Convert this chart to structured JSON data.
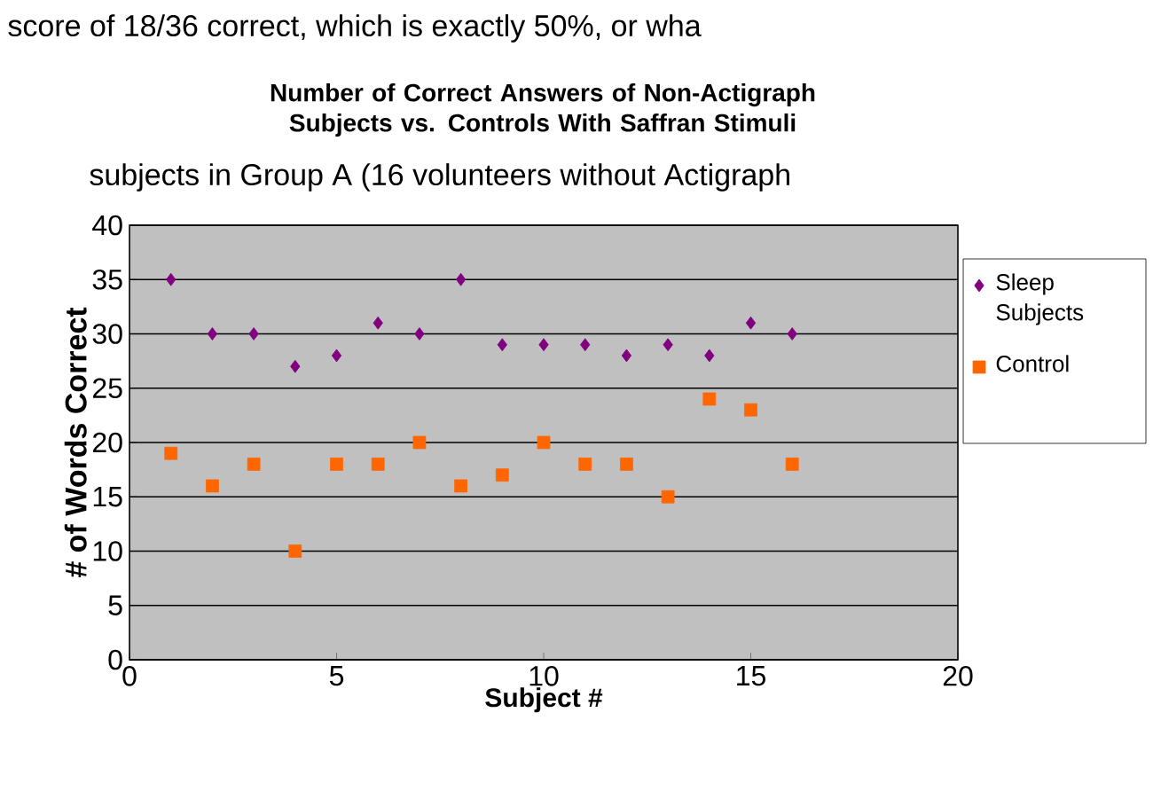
{
  "chart_data": {
    "type": "scatter",
    "title": "Number of Correct Answers of Non-Actigraph Subjects vs. Controls With Saffran Stimuli",
    "xlabel": "Subject #",
    "ylabel": "# of Words Correct",
    "x": [
      1,
      2,
      3,
      4,
      5,
      6,
      7,
      8,
      9,
      10,
      11,
      12,
      13,
      14,
      15,
      16
    ],
    "series": [
      {
        "name": "Sleep Subjects",
        "color": "#800080",
        "marker": "diamond",
        "values": [
          35,
          30,
          30,
          27,
          28,
          31,
          30,
          35,
          29,
          29,
          29,
          28,
          29,
          28,
          31,
          30
        ]
      },
      {
        "name": "Control",
        "color": "#ff6600",
        "marker": "square",
        "values": [
          19,
          16,
          18,
          10,
          18,
          18,
          20,
          16,
          17,
          20,
          18,
          18,
          15,
          24,
          23,
          18
        ]
      }
    ],
    "xlim": [
      0,
      20
    ],
    "xticks": [
      0,
      5,
      10,
      15,
      20
    ],
    "ylim": [
      0,
      40
    ],
    "yticks": [
      0,
      5,
      10,
      15,
      20,
      25,
      30,
      35,
      40
    ],
    "grid": "y",
    "legend": "right",
    "annotations": [
      "score of 18/36 correct, which is exactly 50%, or wha",
      "subjects in Group A (16 volunteers without Actigraph"
    ]
  }
}
